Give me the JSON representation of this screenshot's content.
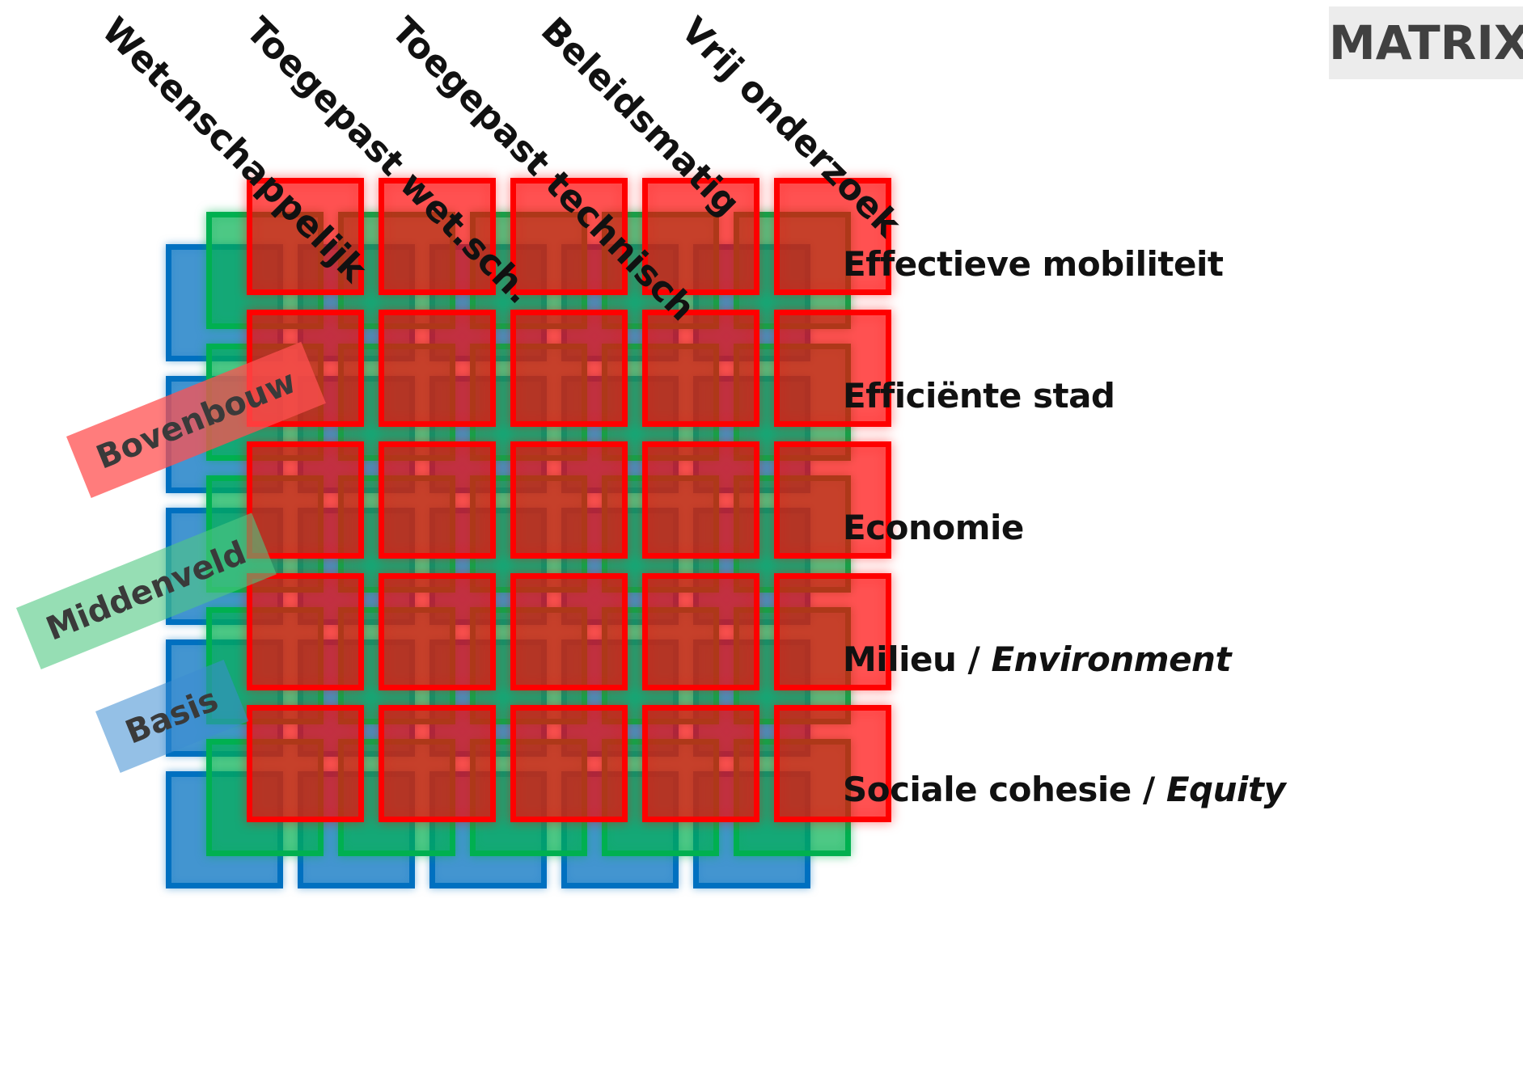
{
  "badge": {
    "label": "MATRIX"
  },
  "columns": [
    "Wetenschappelijk",
    "Toegepast wet.sch.",
    "Toegepast technisch",
    "Beleidsmatig",
    "Vrij onderzoek"
  ],
  "rows": [
    {
      "main": "Effectieve mobiliteit",
      "sep": "",
      "italic": ""
    },
    {
      "main": "Efficiënte stad",
      "sep": "",
      "italic": ""
    },
    {
      "main": "Economie",
      "sep": "",
      "italic": ""
    },
    {
      "main": "Milieu / ",
      "sep": "",
      "italic": "Environment"
    },
    {
      "main": "Sociale cohesie / ",
      "sep": "",
      "italic": "Equity"
    }
  ],
  "layers": [
    {
      "name": "Bovenbouw",
      "color": "#ff0000"
    },
    {
      "name": "Middenveld",
      "color": "#00b050"
    },
    {
      "name": "Basis",
      "color": "#0070c0"
    }
  ]
}
